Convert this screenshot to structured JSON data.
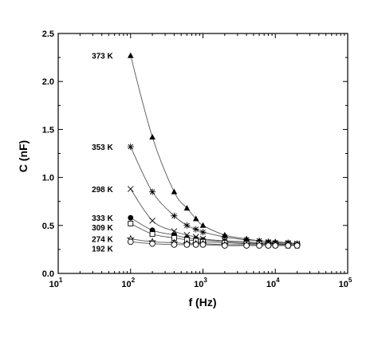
{
  "chart_data": {
    "type": "scatter",
    "xlabel": "f (Hz)",
    "ylabel": "C (nF)",
    "xscale": "log",
    "xlim": [
      10,
      100000
    ],
    "ylim": [
      0,
      2.5
    ],
    "x_ticks": [
      {
        "base": "10",
        "exp": "1",
        "value": 10
      },
      {
        "base": "10",
        "exp": "2",
        "value": 100
      },
      {
        "base": "10",
        "exp": "3",
        "value": 1000
      },
      {
        "base": "10",
        "exp": "4",
        "value": 10000
      },
      {
        "base": "10",
        "exp": "5",
        "value": 100000
      }
    ],
    "y_ticks": [
      {
        "label": "0.0",
        "value": 0.0
      },
      {
        "label": "0.5",
        "value": 0.5
      },
      {
        "label": "1.0",
        "value": 1.0
      },
      {
        "label": "1.5",
        "value": 1.5
      },
      {
        "label": "2.0",
        "value": 2.0
      },
      {
        "label": "2.5",
        "value": 2.5
      }
    ],
    "grid": false,
    "x": [
      100,
      200,
      400,
      600,
      800,
      1000,
      2000,
      4000,
      6000,
      8000,
      10000,
      15000,
      20000
    ],
    "series": [
      {
        "name": "373 K",
        "marker": "filled-triangle",
        "values": [
          2.27,
          1.42,
          0.85,
          0.68,
          0.57,
          0.5,
          0.4,
          0.36,
          0.34,
          0.33,
          0.33,
          0.32,
          0.31
        ]
      },
      {
        "name": "353 K",
        "marker": "asterisk",
        "values": [
          1.32,
          0.85,
          0.6,
          0.5,
          0.46,
          0.43,
          0.38,
          0.35,
          0.34,
          0.33,
          0.32,
          0.32,
          0.31
        ]
      },
      {
        "name": "298 K",
        "marker": "cross",
        "values": [
          0.88,
          0.55,
          0.44,
          0.4,
          0.38,
          0.36,
          0.34,
          0.33,
          0.32,
          0.32,
          0.31,
          0.31,
          0.31
        ]
      },
      {
        "name": "333 K",
        "marker": "filled-circle",
        "values": [
          0.58,
          0.45,
          0.4,
          0.37,
          0.36,
          0.35,
          0.33,
          0.32,
          0.31,
          0.31,
          0.31,
          0.3,
          0.3
        ]
      },
      {
        "name": "309 K",
        "marker": "open-square",
        "values": [
          0.52,
          0.41,
          0.37,
          0.35,
          0.34,
          0.33,
          0.32,
          0.31,
          0.31,
          0.3,
          0.3,
          0.3,
          0.3
        ]
      },
      {
        "name": "274 K",
        "marker": "open-star",
        "values": [
          0.36,
          0.33,
          0.32,
          0.31,
          0.31,
          0.31,
          0.3,
          0.3,
          0.3,
          0.3,
          0.3,
          0.29,
          0.29
        ]
      },
      {
        "name": "192 K",
        "marker": "open-circle",
        "values": [
          0.33,
          0.31,
          0.3,
          0.3,
          0.3,
          0.3,
          0.29,
          0.29,
          0.29,
          0.29,
          0.29,
          0.29,
          0.29
        ]
      }
    ]
  }
}
